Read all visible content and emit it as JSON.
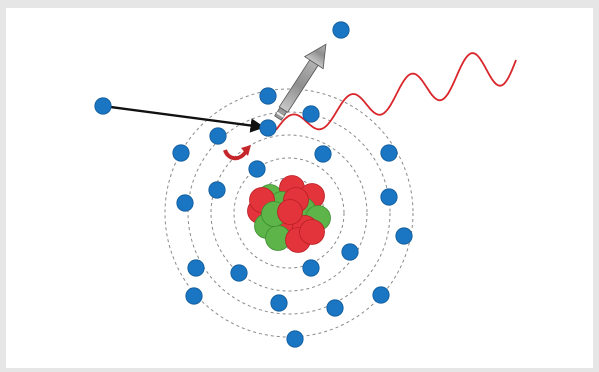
{
  "diagram": {
    "colors": {
      "background": "#e6e6e6",
      "panel": "#ffffff",
      "electron": "#1a75c2",
      "electron_edge": "#0f5a99",
      "orbit": "#8a8a8a",
      "proton": "#e2343a",
      "neutron": "#5db54a",
      "incoming_particle_arrow": "#111111",
      "ejected_electron_arrow": "#9a9a9a",
      "photon_wave": "#d9262b",
      "transition_arrow": "#c4262b"
    },
    "icons": {
      "incoming_arrow": "black-arrow-icon",
      "ejected_arrow": "gray-arrow-icon",
      "photon": "wave-icon",
      "transition": "curved-arrow-icon"
    },
    "shell_count": 5,
    "shell_electron_counts": [
      2,
      4,
      6,
      8,
      4
    ]
  }
}
